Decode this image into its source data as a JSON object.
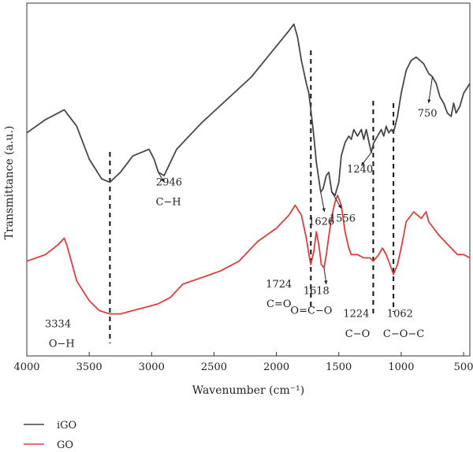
{
  "chart_data": {
    "type": "line",
    "xlabel": "Wavenumber (cm⁻¹)",
    "ylabel": "Transmittance (a.u.)",
    "xlim": [
      4000,
      450
    ],
    "ylim": [
      0,
      100
    ],
    "reversed_x": true,
    "grid": false,
    "legend_position": "bottom-left",
    "x_ticks": [
      "4000",
      "3500",
      "3000",
      "2500",
      "2000",
      "1500",
      "1000",
      "500"
    ],
    "x_tick_values": [
      4000,
      3500,
      3000,
      2500,
      2000,
      1500,
      1000,
      500
    ],
    "series": [
      {
        "name": "iGO",
        "color": "#474747",
        "points": [
          [
            4000,
            63
          ],
          [
            3850,
            67
          ],
          [
            3700,
            70
          ],
          [
            3600,
            65
          ],
          [
            3500,
            55
          ],
          [
            3400,
            49
          ],
          [
            3334,
            48
          ],
          [
            3250,
            51
          ],
          [
            3150,
            56
          ],
          [
            3020,
            58
          ],
          [
            2980,
            55
          ],
          [
            2946,
            51
          ],
          [
            2900,
            50
          ],
          [
            2850,
            54
          ],
          [
            2800,
            58
          ],
          [
            2600,
            66
          ],
          [
            2400,
            73
          ],
          [
            2200,
            80
          ],
          [
            2050,
            87
          ],
          [
            1900,
            94
          ],
          [
            1860,
            96
          ],
          [
            1830,
            92
          ],
          [
            1800,
            85
          ],
          [
            1760,
            78
          ],
          [
            1740,
            75
          ],
          [
            1724,
            70
          ],
          [
            1700,
            62
          ],
          [
            1680,
            54
          ],
          [
            1660,
            49
          ],
          [
            1645,
            45
          ],
          [
            1626,
            46
          ],
          [
            1600,
            50
          ],
          [
            1580,
            51
          ],
          [
            1556,
            45
          ],
          [
            1530,
            44
          ],
          [
            1500,
            48
          ],
          [
            1480,
            56
          ],
          [
            1450,
            60
          ],
          [
            1420,
            62
          ],
          [
            1400,
            61
          ],
          [
            1380,
            64
          ],
          [
            1350,
            62
          ],
          [
            1320,
            64
          ],
          [
            1300,
            61
          ],
          [
            1280,
            64
          ],
          [
            1240,
            57
          ],
          [
            1220,
            60
          ],
          [
            1190,
            62
          ],
          [
            1160,
            64
          ],
          [
            1140,
            62
          ],
          [
            1120,
            65
          ],
          [
            1100,
            63
          ],
          [
            1080,
            64
          ],
          [
            1062,
            63
          ],
          [
            1030,
            68
          ],
          [
            1000,
            75
          ],
          [
            960,
            82
          ],
          [
            920,
            85
          ],
          [
            880,
            86
          ],
          [
            850,
            85
          ],
          [
            820,
            84
          ],
          [
            780,
            81
          ],
          [
            750,
            80
          ],
          [
            720,
            78
          ],
          [
            690,
            74
          ],
          [
            660,
            72
          ],
          [
            630,
            69
          ],
          [
            600,
            68
          ],
          [
            580,
            72
          ],
          [
            560,
            69
          ],
          [
            530,
            71
          ],
          [
            500,
            75
          ],
          [
            450,
            78
          ]
        ]
      },
      {
        "name": "GO",
        "color": "#E03C3C",
        "points": [
          [
            4000,
            24
          ],
          [
            3850,
            26
          ],
          [
            3750,
            29
          ],
          [
            3700,
            31
          ],
          [
            3680,
            29
          ],
          [
            3600,
            18
          ],
          [
            3500,
            12
          ],
          [
            3420,
            9
          ],
          [
            3334,
            8
          ],
          [
            3250,
            8
          ],
          [
            3150,
            9
          ],
          [
            3050,
            10
          ],
          [
            2950,
            11
          ],
          [
            2850,
            13
          ],
          [
            2750,
            17
          ],
          [
            2600,
            19
          ],
          [
            2450,
            21
          ],
          [
            2300,
            24
          ],
          [
            2150,
            30
          ],
          [
            2000,
            34
          ],
          [
            1900,
            38
          ],
          [
            1850,
            41
          ],
          [
            1800,
            38
          ],
          [
            1760,
            31
          ],
          [
            1740,
            26
          ],
          [
            1724,
            23
          ],
          [
            1700,
            27
          ],
          [
            1680,
            33
          ],
          [
            1660,
            29
          ],
          [
            1640,
            23
          ],
          [
            1618,
            22
          ],
          [
            1600,
            26
          ],
          [
            1560,
            37
          ],
          [
            1530,
            42
          ],
          [
            1510,
            44
          ],
          [
            1480,
            41
          ],
          [
            1450,
            33
          ],
          [
            1420,
            28
          ],
          [
            1400,
            26
          ],
          [
            1350,
            26
          ],
          [
            1300,
            25
          ],
          [
            1250,
            25
          ],
          [
            1224,
            24
          ],
          [
            1180,
            26
          ],
          [
            1150,
            28
          ],
          [
            1120,
            26
          ],
          [
            1090,
            23
          ],
          [
            1062,
            20
          ],
          [
            1030,
            23
          ],
          [
            1000,
            28
          ],
          [
            960,
            36
          ],
          [
            900,
            39
          ],
          [
            870,
            38
          ],
          [
            840,
            37
          ],
          [
            800,
            39
          ],
          [
            780,
            36
          ],
          [
            740,
            34
          ],
          [
            700,
            32
          ],
          [
            650,
            30
          ],
          [
            600,
            28
          ],
          [
            550,
            26
          ],
          [
            500,
            26
          ],
          [
            450,
            25
          ]
        ]
      }
    ],
    "reference_lines": [
      3334,
      1724,
      1224,
      1062
    ],
    "annotations": [
      {
        "text": "2946",
        "x": 2860,
        "y": 47
      },
      {
        "text": "C−H",
        "x": 2865,
        "y": 41
      },
      {
        "text": "1626",
        "x": 1640,
        "y": 35
      },
      {
        "text": "1556",
        "x": 1470,
        "y": 36
      },
      {
        "text": "1240",
        "x": 1330,
        "y": 51
      },
      {
        "text": "750",
        "x": 790,
        "y": 68
      },
      {
        "text": "1724",
        "x": 1980,
        "y": 16
      },
      {
        "text": "C=O",
        "x": 1980,
        "y": 10
      },
      {
        "text": "1618",
        "x": 1680,
        "y": 14
      },
      {
        "text": "O=C−O",
        "x": 1720,
        "y": 8
      },
      {
        "text": "3334",
        "x": 3750,
        "y": 4
      },
      {
        "text": "O−H",
        "x": 3720,
        "y": -2
      },
      {
        "text": "1224",
        "x": 1360,
        "y": 7
      },
      {
        "text": "C−O",
        "x": 1350,
        "y": 1
      },
      {
        "text": "1062",
        "x": 1010,
        "y": 7
      },
      {
        "text": "C−O−C",
        "x": 980,
        "y": 1
      }
    ],
    "annotation_arrows": [
      {
        "from": [
          2946,
          51
        ],
        "to": [
          2900,
          48
        ]
      },
      {
        "from": [
          1645,
          45
        ],
        "to": [
          1615,
          39
        ]
      },
      {
        "from": [
          1556,
          45
        ],
        "to": [
          1480,
          40
        ]
      },
      {
        "from": [
          1240,
          57
        ],
        "to": [
          1320,
          53
        ]
      },
      {
        "from": [
          750,
          80
        ],
        "to": [
          780,
          72
        ]
      },
      {
        "from": [
          1618,
          22
        ],
        "to": [
          1600,
          17
        ]
      }
    ]
  }
}
